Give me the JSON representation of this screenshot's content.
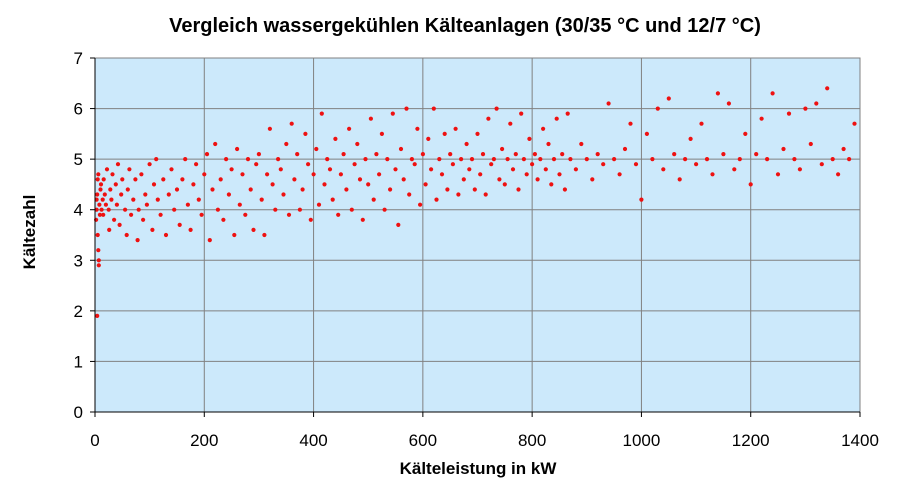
{
  "chart_data": {
    "type": "scatter",
    "title": "Vergleich wassergekühlen Kälteanlagen (30/35 °C und 12/7 °C)",
    "xlabel": "Kälteleistung  in kW",
    "ylabel": "Kältezahl",
    "xlim": [
      0,
      1400
    ],
    "ylim": [
      0,
      7
    ],
    "xticks": [
      "0",
      "200",
      "400",
      "600",
      "800",
      "1000",
      "1200",
      "1400"
    ],
    "yticks": [
      "0",
      "1",
      "2",
      "3",
      "4",
      "5",
      "6",
      "7"
    ],
    "grid": true,
    "legend": "none",
    "colors": {
      "plot_background": "#cce9fb",
      "points": "#ee1111",
      "grid": "#808080"
    },
    "series": [
      {
        "values": [
          [
            2,
            3.8
          ],
          [
            3,
            4.0
          ],
          [
            4,
            4.3
          ],
          [
            5,
            4.6
          ],
          [
            5,
            3.5
          ],
          [
            6,
            3.2
          ],
          [
            7,
            3.0
          ],
          [
            7,
            2.9
          ],
          [
            4,
            1.9
          ],
          [
            3,
            4.2
          ],
          [
            8,
            4.1
          ],
          [
            9,
            3.9
          ],
          [
            10,
            4.4
          ],
          [
            6,
            4.7
          ],
          [
            11,
            4.5
          ],
          [
            12,
            4.0
          ],
          [
            14,
            4.2
          ],
          [
            15,
            3.9
          ],
          [
            16,
            4.6
          ],
          [
            18,
            4.3
          ],
          [
            20,
            4.1
          ],
          [
            22,
            4.8
          ],
          [
            25,
            4.0
          ],
          [
            26,
            3.6
          ],
          [
            28,
            4.4
          ],
          [
            30,
            4.2
          ],
          [
            32,
            4.7
          ],
          [
            35,
            3.8
          ],
          [
            38,
            4.5
          ],
          [
            40,
            4.1
          ],
          [
            42,
            4.9
          ],
          [
            45,
            3.7
          ],
          [
            48,
            4.3
          ],
          [
            50,
            4.6
          ],
          [
            55,
            4.0
          ],
          [
            58,
            3.5
          ],
          [
            60,
            4.4
          ],
          [
            63,
            4.8
          ],
          [
            66,
            3.9
          ],
          [
            70,
            4.2
          ],
          [
            74,
            4.6
          ],
          [
            78,
            3.4
          ],
          [
            80,
            4.0
          ],
          [
            85,
            4.7
          ],
          [
            88,
            3.8
          ],
          [
            92,
            4.3
          ],
          [
            95,
            4.1
          ],
          [
            100,
            4.9
          ],
          [
            105,
            3.6
          ],
          [
            108,
            4.5
          ],
          [
            112,
            5.0
          ],
          [
            115,
            4.2
          ],
          [
            120,
            3.9
          ],
          [
            125,
            4.6
          ],
          [
            130,
            3.5
          ],
          [
            135,
            4.3
          ],
          [
            140,
            4.8
          ],
          [
            145,
            4.0
          ],
          [
            150,
            4.4
          ],
          [
            155,
            3.7
          ],
          [
            160,
            4.6
          ],
          [
            165,
            5.0
          ],
          [
            170,
            4.1
          ],
          [
            175,
            3.6
          ],
          [
            180,
            4.5
          ],
          [
            185,
            4.9
          ],
          [
            190,
            4.2
          ],
          [
            195,
            3.9
          ],
          [
            200,
            4.7
          ],
          [
            205,
            5.1
          ],
          [
            210,
            3.4
          ],
          [
            215,
            4.4
          ],
          [
            220,
            5.3
          ],
          [
            225,
            4.0
          ],
          [
            230,
            4.6
          ],
          [
            235,
            3.8
          ],
          [
            240,
            5.0
          ],
          [
            245,
            4.3
          ],
          [
            250,
            4.8
          ],
          [
            255,
            3.5
          ],
          [
            260,
            5.2
          ],
          [
            265,
            4.1
          ],
          [
            270,
            4.7
          ],
          [
            275,
            3.9
          ],
          [
            280,
            5.0
          ],
          [
            285,
            4.4
          ],
          [
            290,
            3.6
          ],
          [
            295,
            4.9
          ],
          [
            300,
            5.1
          ],
          [
            305,
            4.2
          ],
          [
            310,
            3.5
          ],
          [
            315,
            4.7
          ],
          [
            320,
            5.6
          ],
          [
            325,
            4.5
          ],
          [
            330,
            4.0
          ],
          [
            335,
            5.0
          ],
          [
            340,
            4.8
          ],
          [
            345,
            4.3
          ],
          [
            350,
            5.3
          ],
          [
            355,
            3.9
          ],
          [
            360,
            5.7
          ],
          [
            365,
            4.6
          ],
          [
            370,
            5.1
          ],
          [
            375,
            4.0
          ],
          [
            380,
            4.4
          ],
          [
            385,
            5.5
          ],
          [
            390,
            4.9
          ],
          [
            395,
            3.8
          ],
          [
            400,
            4.7
          ],
          [
            405,
            5.2
          ],
          [
            410,
            4.1
          ],
          [
            415,
            5.9
          ],
          [
            420,
            4.5
          ],
          [
            425,
            5.0
          ],
          [
            430,
            4.8
          ],
          [
            435,
            4.2
          ],
          [
            440,
            5.4
          ],
          [
            445,
            3.9
          ],
          [
            450,
            4.7
          ],
          [
            455,
            5.1
          ],
          [
            460,
            4.4
          ],
          [
            465,
            5.6
          ],
          [
            470,
            4.0
          ],
          [
            475,
            4.9
          ],
          [
            480,
            5.3
          ],
          [
            485,
            4.6
          ],
          [
            490,
            3.8
          ],
          [
            495,
            5.0
          ],
          [
            500,
            4.5
          ],
          [
            505,
            5.8
          ],
          [
            510,
            4.2
          ],
          [
            515,
            5.1
          ],
          [
            520,
            4.7
          ],
          [
            525,
            5.5
          ],
          [
            530,
            4.0
          ],
          [
            535,
            5.0
          ],
          [
            540,
            4.4
          ],
          [
            545,
            5.9
          ],
          [
            550,
            4.8
          ],
          [
            555,
            3.7
          ],
          [
            560,
            5.2
          ],
          [
            565,
            4.6
          ],
          [
            570,
            6.0
          ],
          [
            575,
            4.3
          ],
          [
            580,
            5.0
          ],
          [
            585,
            4.9
          ],
          [
            590,
            5.6
          ],
          [
            595,
            4.1
          ],
          [
            600,
            5.1
          ],
          [
            605,
            4.5
          ],
          [
            610,
            5.4
          ],
          [
            615,
            4.8
          ],
          [
            620,
            6.0
          ],
          [
            625,
            4.2
          ],
          [
            630,
            5.0
          ],
          [
            635,
            4.7
          ],
          [
            640,
            5.5
          ],
          [
            645,
            4.4
          ],
          [
            650,
            5.1
          ],
          [
            655,
            4.9
          ],
          [
            660,
            5.6
          ],
          [
            665,
            4.3
          ],
          [
            670,
            5.0
          ],
          [
            675,
            4.6
          ],
          [
            680,
            5.3
          ],
          [
            685,
            4.8
          ],
          [
            690,
            5.0
          ],
          [
            695,
            4.4
          ],
          [
            700,
            5.5
          ],
          [
            705,
            4.7
          ],
          [
            710,
            5.1
          ],
          [
            715,
            4.3
          ],
          [
            720,
            5.8
          ],
          [
            725,
            4.9
          ],
          [
            730,
            5.0
          ],
          [
            735,
            6.0
          ],
          [
            740,
            4.6
          ],
          [
            745,
            5.2
          ],
          [
            750,
            4.5
          ],
          [
            755,
            5.0
          ],
          [
            760,
            5.7
          ],
          [
            765,
            4.8
          ],
          [
            770,
            5.1
          ],
          [
            775,
            4.4
          ],
          [
            780,
            5.9
          ],
          [
            785,
            5.0
          ],
          [
            790,
            4.7
          ],
          [
            795,
            5.4
          ],
          [
            800,
            4.9
          ],
          [
            805,
            5.1
          ],
          [
            810,
            4.6
          ],
          [
            815,
            5.0
          ],
          [
            820,
            5.6
          ],
          [
            825,
            4.8
          ],
          [
            830,
            5.3
          ],
          [
            835,
            4.5
          ],
          [
            840,
            5.0
          ],
          [
            845,
            5.8
          ],
          [
            850,
            4.7
          ],
          [
            855,
            5.1
          ],
          [
            860,
            4.4
          ],
          [
            865,
            5.9
          ],
          [
            870,
            5.0
          ],
          [
            880,
            4.8
          ],
          [
            890,
            5.3
          ],
          [
            900,
            5.0
          ],
          [
            910,
            4.6
          ],
          [
            920,
            5.1
          ],
          [
            930,
            4.9
          ],
          [
            940,
            6.1
          ],
          [
            950,
            5.0
          ],
          [
            960,
            4.7
          ],
          [
            970,
            5.2
          ],
          [
            980,
            5.7
          ],
          [
            990,
            4.9
          ],
          [
            1000,
            4.2
          ],
          [
            1010,
            5.5
          ],
          [
            1020,
            5.0
          ],
          [
            1030,
            6.0
          ],
          [
            1040,
            4.8
          ],
          [
            1050,
            6.2
          ],
          [
            1060,
            5.1
          ],
          [
            1070,
            4.6
          ],
          [
            1080,
            5.0
          ],
          [
            1090,
            5.4
          ],
          [
            1100,
            4.9
          ],
          [
            1110,
            5.7
          ],
          [
            1120,
            5.0
          ],
          [
            1130,
            4.7
          ],
          [
            1140,
            6.3
          ],
          [
            1150,
            5.1
          ],
          [
            1160,
            6.1
          ],
          [
            1170,
            4.8
          ],
          [
            1180,
            5.0
          ],
          [
            1190,
            5.5
          ],
          [
            1200,
            4.5
          ],
          [
            1210,
            5.1
          ],
          [
            1220,
            5.8
          ],
          [
            1230,
            5.0
          ],
          [
            1240,
            6.3
          ],
          [
            1250,
            4.7
          ],
          [
            1260,
            5.2
          ],
          [
            1270,
            5.9
          ],
          [
            1280,
            5.0
          ],
          [
            1290,
            4.8
          ],
          [
            1300,
            6.0
          ],
          [
            1310,
            5.3
          ],
          [
            1320,
            6.1
          ],
          [
            1330,
            4.9
          ],
          [
            1340,
            6.4
          ],
          [
            1350,
            5.0
          ],
          [
            1360,
            4.7
          ],
          [
            1370,
            5.2
          ],
          [
            1380,
            5.0
          ],
          [
            1390,
            5.7
          ]
        ]
      }
    ]
  }
}
